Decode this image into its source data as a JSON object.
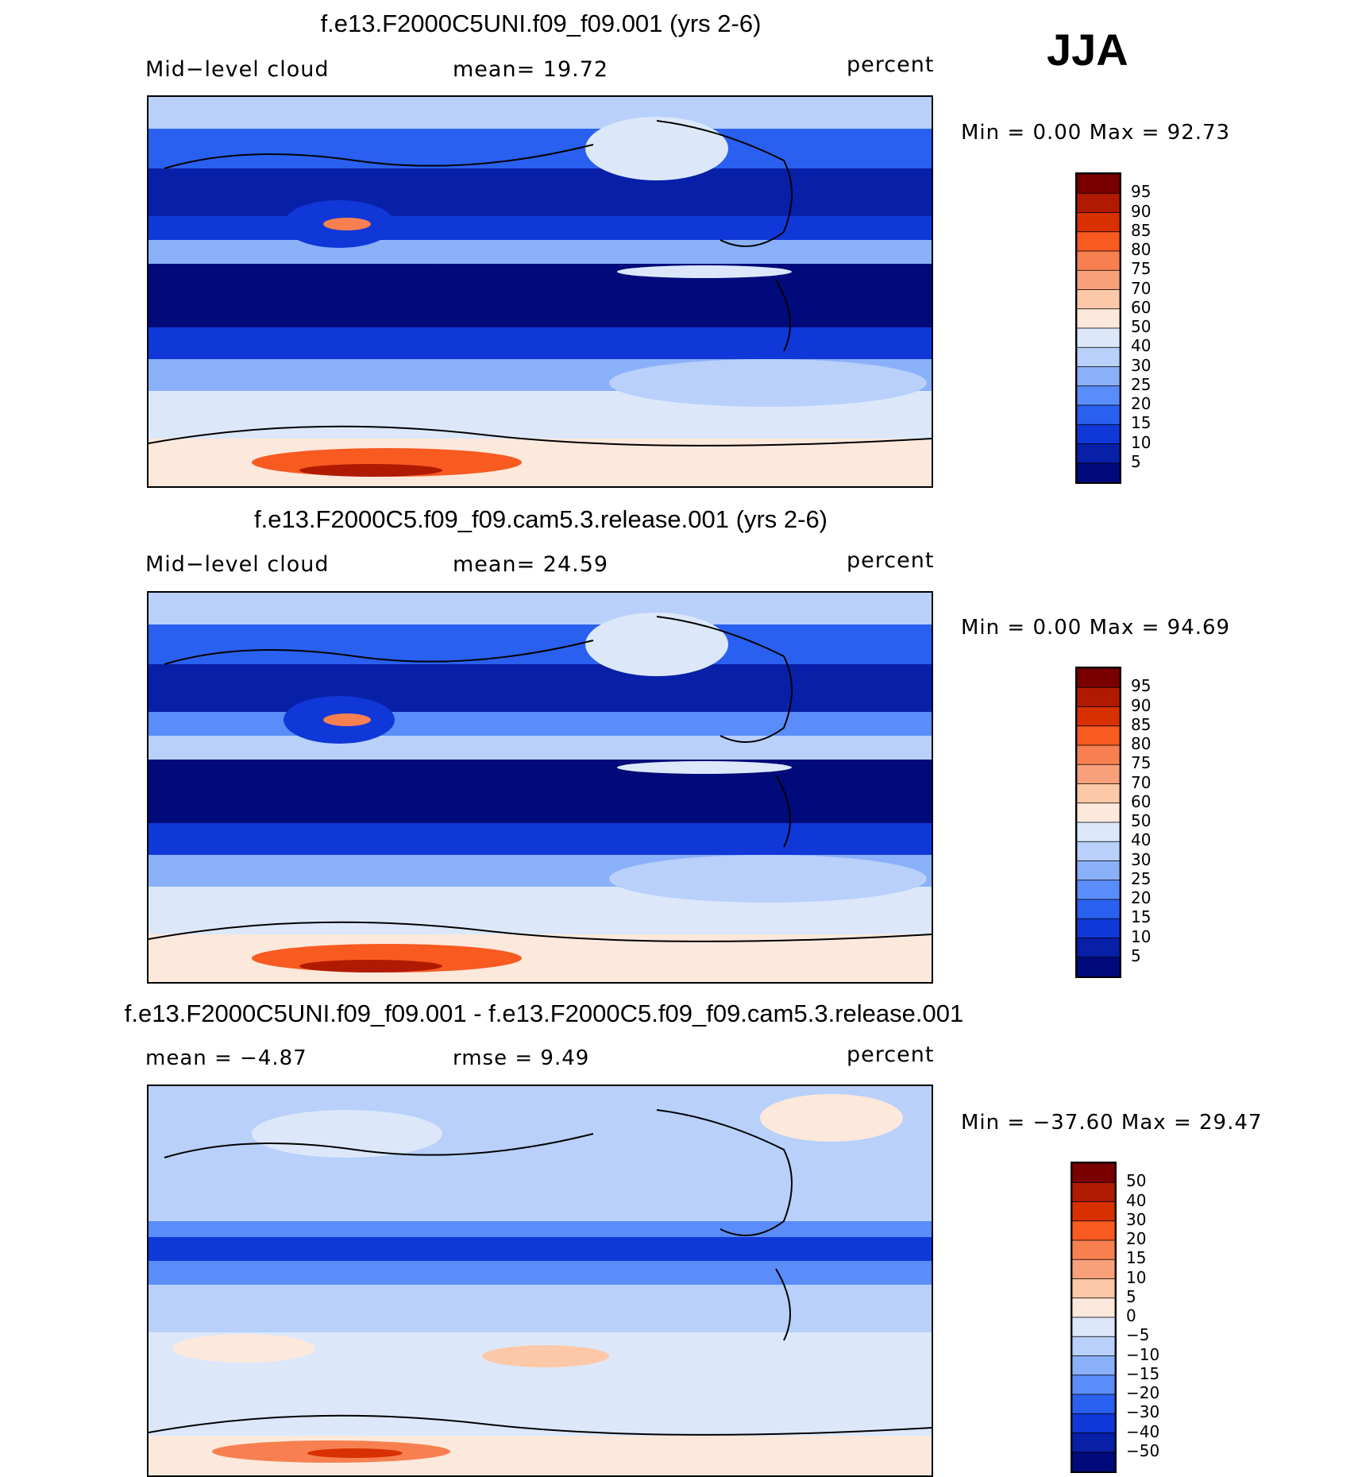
{
  "season": "JJA",
  "panels": [
    {
      "title": "f.e13.F2000C5UNI.f09_f09.001 (yrs 2-6)",
      "left_label": "Mid−level cloud",
      "center_label": "mean=   19.72",
      "right_label": "percent",
      "stats": "Min  =     0.00  Max  =    92.73",
      "palette": "abs",
      "colorbar_labels": [
        "95",
        "90",
        "85",
        "80",
        "75",
        "70",
        "60",
        "50",
        "40",
        "30",
        "25",
        "20",
        "15",
        "10",
        "5"
      ]
    },
    {
      "title": "f.e13.F2000C5.f09_f09.cam5.3.release.001 (yrs 2-6)",
      "left_label": "Mid−level cloud",
      "center_label": "mean=   24.59",
      "right_label": "percent",
      "stats": "Min  =     0.00  Max  =    94.69",
      "palette": "abs",
      "colorbar_labels": [
        "95",
        "90",
        "85",
        "80",
        "75",
        "70",
        "60",
        "50",
        "40",
        "30",
        "25",
        "20",
        "15",
        "10",
        "5"
      ]
    },
    {
      "title": "f.e13.F2000C5UNI.f09_f09.001 - f.e13.F2000C5.f09_f09.cam5.3.release.001",
      "left_label": "mean  =   −4.87",
      "center_label": "rmse  =     9.49",
      "right_label": "percent",
      "stats": "Min  = −37.60  Max  =    29.47",
      "palette": "diff",
      "colorbar_labels": [
        "50",
        "40",
        "30",
        "20",
        "15",
        "10",
        "5",
        "0",
        "−5",
        "−10",
        "−15",
        "−20",
        "−30",
        "−40",
        "−50"
      ]
    }
  ],
  "colors": {
    "abs": [
      "#7a0000",
      "#b01a00",
      "#d83000",
      "#f85a20",
      "#f88050",
      "#f8a07a",
      "#fcc8a8",
      "#fde8dc",
      "#dce8fa",
      "#b8d0fa",
      "#8ab0fa",
      "#5a8cfa",
      "#2a60f0",
      "#1038d8",
      "#0820a8",
      "#000a7a"
    ],
    "diff": [
      "#7a0000",
      "#b01a00",
      "#d83000",
      "#f85a20",
      "#f88050",
      "#f8a07a",
      "#fcc8a8",
      "#fde8dc",
      "#dce8fa",
      "#b8d0fa",
      "#8ab0fa",
      "#5a8cfa",
      "#2a60f0",
      "#1038d8",
      "#0820a8",
      "#000a7a"
    ]
  }
}
